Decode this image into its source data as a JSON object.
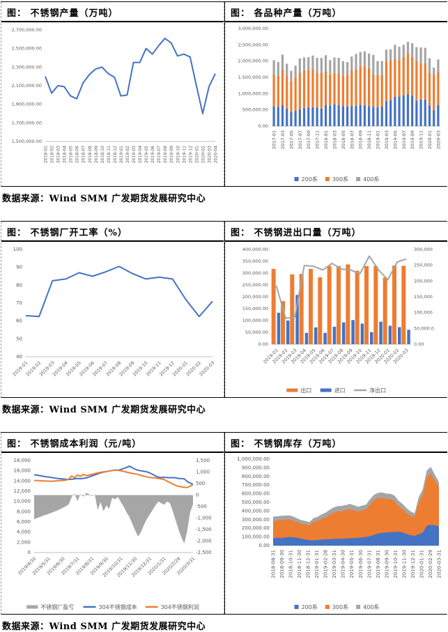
{
  "source_text": "数据来源：Wind SMM  广发期货发展研究中心",
  "colors": {
    "blue": "#4472C4",
    "orange": "#ED7D31",
    "gray": "#A5A5A5"
  },
  "chart_data": [
    {
      "type": "line",
      "title": "图： 不锈钢产量（万吨）",
      "categories": [
        "2018-01",
        "2018-02",
        "2018-03",
        "2018-04",
        "2018-05",
        "2018-06",
        "2018-07",
        "2018-08",
        "2018-09",
        "2018-10",
        "2018-11",
        "2018-12",
        "2019-01",
        "2019-02",
        "2019-03",
        "2019-04",
        "2019-05",
        "2019-06",
        "2019-07",
        "2019-08",
        "2019-09",
        "2019-10",
        "2019-11",
        "2019-12",
        "2020-01",
        "2020-02",
        "2020-03",
        "2020-04"
      ],
      "values": [
        2200000,
        2020000,
        2100000,
        2090000,
        1990000,
        1960000,
        2130000,
        2220000,
        2280000,
        2300000,
        2230000,
        2190000,
        1990000,
        2000000,
        2350000,
        2350000,
        2500000,
        2440000,
        2530000,
        2610000,
        2560000,
        2420000,
        2440000,
        2410000,
        2100000,
        1800000,
        2090000,
        2230000
      ],
      "ylim": [
        1500000,
        2700000
      ],
      "ystep": 200000,
      "ydec": 2,
      "xrot": 90,
      "color": "#4472C4"
    },
    {
      "type": "stacked_bar",
      "title": "图： 各品种产量（万吨）",
      "categories": [
        "2017-01",
        "2017-02",
        "2017-03",
        "2017-04",
        "2017-05",
        "2017-06",
        "2017-07",
        "2017-08",
        "2017-09",
        "2017-10",
        "2017-11",
        "2017-12",
        "2018-01",
        "2018-02",
        "2018-03",
        "2018-04",
        "2018-05",
        "2018-06",
        "2018-07",
        "2018-08",
        "2018-09",
        "2018-10",
        "2018-11",
        "2018-12",
        "2019-01",
        "2019-02",
        "2019-03",
        "2019-04",
        "2019-05",
        "2019-06",
        "2019-07",
        "2019-08",
        "2019-09",
        "2019-10",
        "2019-11",
        "2019-12",
        "2020-01",
        "2020-02",
        "2020-03"
      ],
      "label_every": 2,
      "xrot": 90,
      "series": [
        {
          "name": "200系",
          "color": "#4472C4",
          "values": [
            600000,
            590000,
            640000,
            540000,
            430000,
            470000,
            520000,
            560000,
            580000,
            580000,
            570000,
            540000,
            650000,
            630000,
            680000,
            650000,
            610000,
            600000,
            620000,
            620000,
            660000,
            640000,
            610000,
            590000,
            580000,
            600000,
            760000,
            800000,
            900000,
            910000,
            950000,
            980000,
            930000,
            780000,
            820000,
            820000,
            640000,
            500000,
            660000
          ]
        },
        {
          "name": "300系",
          "color": "#ED7D31",
          "values": [
            985000,
            960000,
            1100000,
            1010000,
            950000,
            1030000,
            1120000,
            1160000,
            1140000,
            1180000,
            1070000,
            1100000,
            1040000,
            960000,
            950000,
            970000,
            950000,
            980000,
            1090000,
            1130000,
            1180000,
            1210000,
            1170000,
            1000000,
            1000000,
            980000,
            1250000,
            1220000,
            1170000,
            1130000,
            1170000,
            1240000,
            1200000,
            1220000,
            1110000,
            1110000,
            1000000,
            1100000,
            1000000
          ]
        },
        {
          "name": "400系",
          "color": "#A5A5A5",
          "values": [
            440000,
            420000,
            460000,
            370000,
            320000,
            360000,
            440000,
            390000,
            400000,
            410000,
            460000,
            460000,
            490000,
            440000,
            480000,
            480000,
            440000,
            390000,
            430000,
            470000,
            440000,
            450000,
            450000,
            600000,
            420000,
            420000,
            340000,
            340000,
            430000,
            400000,
            380000,
            370000,
            420000,
            430000,
            490000,
            480000,
            450000,
            200000,
            390000
          ]
        }
      ],
      "ylim": [
        0,
        3000000
      ],
      "ystep": 500000,
      "ydec": 2,
      "legend": [
        {
          "kind": "rect",
          "color": "#4472C4",
          "label": "200系"
        },
        {
          "kind": "rect",
          "color": "#ED7D31",
          "label": "300系"
        },
        {
          "kind": "rect",
          "color": "#A5A5A5",
          "label": "400系"
        }
      ]
    },
    {
      "type": "line",
      "title": "图： 不锈钢厂开工率（%）",
      "categories": [
        "2019-01",
        "2019-02",
        "2019-03",
        "2019-04",
        "2019-05",
        "2019-06",
        "2019-07",
        "2019-08",
        "2019-09",
        "2019-10",
        "2019-11",
        "2019-12",
        "2020-01",
        "2020-02",
        "2020-03"
      ],
      "values": [
        63,
        62.5,
        82.5,
        83.5,
        87,
        85,
        87.5,
        90.5,
        86.5,
        83.5,
        84.5,
        83.5,
        72,
        62.5,
        71
      ],
      "ylim": [
        40,
        100
      ],
      "ystep": 10,
      "ydec": 0,
      "xrot": 45,
      "color": "#4472C4"
    },
    {
      "type": "bar_line",
      "title": "图： 不锈钢进出口量（万吨）",
      "categories": [
        "2019-01",
        "2019-02",
        "2019-03",
        "2019-04",
        "2019-05",
        "2019-06",
        "2019-07",
        "2019-08",
        "2019-09",
        "2019-10",
        "2019-11",
        "2019-12",
        "2020-01",
        "2020-02",
        "2020-03"
      ],
      "bars": [
        {
          "name": "出口",
          "color": "#ED7D31",
          "values": [
            318000,
            182000,
            295000,
            297000,
            318000,
            283000,
            330000,
            330000,
            337000,
            310000,
            330000,
            330000,
            282000,
            332000,
            331000
          ]
        },
        {
          "name": "进口",
          "color": "#4472C4",
          "values": [
            133000,
            100000,
            208000,
            48000,
            71000,
            48000,
            74000,
            92000,
            102000,
            87000,
            51000,
            95000,
            78000,
            72000,
            61000
          ]
        }
      ],
      "line": {
        "name": "净出口",
        "color": "#A5A5A5",
        "axis": "y2",
        "values": [
          185000,
          82000,
          87000,
          249000,
          247000,
          235000,
          256000,
          238000,
          235000,
          223000,
          279000,
          235000,
          204000,
          260000,
          270000
        ]
      },
      "ylim": [
        0,
        400000
      ],
      "ystep": 50000,
      "ydec": 2,
      "y2lim": [
        0,
        300000
      ],
      "y2step": 50000,
      "y2tick_labels": [
        "0.00",
        "50,000.0",
        "100,000",
        "150,000",
        "200,000",
        "250,000",
        "300,000"
      ],
      "xrot": 45,
      "legend": [
        {
          "kind": "bar",
          "color": "#ED7D31",
          "label": "出口"
        },
        {
          "kind": "bar",
          "color": "#4472C4",
          "label": "进口"
        },
        {
          "kind": "line",
          "color": "#A5A5A5",
          "label": "净出口"
        }
      ]
    },
    {
      "type": "area_lines",
      "title": "图： 不锈钢成本利润（元/吨）",
      "categories": [
        "2019/4/30",
        "2019/5/31",
        "2019/6/30",
        "2019/7/31",
        "2019/8/31",
        "2019/9/30",
        "2019/10/31",
        "2019/11/30",
        "2019/12/31",
        "2020/1/31",
        "2020/2/29",
        "2020/3/31"
      ],
      "area": {
        "name": "不锈钢厂盈亏",
        "color": "#A6A6A6",
        "axis": "y2",
        "values": [
          -1050,
          -1000,
          -950,
          -900,
          -860,
          -820,
          -770,
          -720,
          -670,
          -610,
          -550,
          -480,
          -400,
          -80,
          60,
          -260,
          40,
          -70,
          90,
          40,
          -40,
          30,
          -650,
          -300,
          -700,
          -450,
          -600,
          -120,
          -180,
          -80,
          -300,
          -500,
          -750,
          -950,
          -1250,
          -1550,
          -1800,
          -1600,
          -1300,
          -1050,
          -850,
          -650,
          -450,
          -280,
          -350,
          -420,
          -280,
          -350,
          -700,
          -1100,
          -1500,
          -1850,
          -2100,
          -1550,
          -750,
          -400
        ]
      },
      "lines": [
        {
          "name": "304不锈钢成本",
          "color": "#4472C4",
          "values": [
            15200,
            15150,
            15050,
            14950,
            14850,
            14780,
            14700,
            14600,
            14500,
            14450,
            14400,
            14350,
            14300,
            14350,
            14420,
            14500,
            14450,
            14520,
            14600,
            14800,
            15000,
            15200,
            15400,
            15600,
            15750,
            15850,
            15950,
            16050,
            16150,
            16100,
            16250,
            16450,
            16650,
            16900,
            16600,
            16300,
            16100,
            16000,
            15900,
            15800,
            15600,
            15300,
            15000,
            14750,
            14700,
            14720,
            14680,
            14650,
            14680,
            14620,
            14500,
            14480,
            14420,
            13900,
            13600,
            13350
          ]
        },
        {
          "name": "304不锈钢利润",
          "color": "#ED7D31",
          "values": [
            14100,
            14090,
            14060,
            14020,
            14000,
            13980,
            13960,
            14000,
            14040,
            14080,
            14120,
            14180,
            14400,
            15000,
            14650,
            15200,
            14900,
            15300,
            15050,
            15200,
            15300,
            15450,
            15600,
            15700,
            15800,
            15850,
            15950,
            16050,
            16150,
            16100,
            16000,
            15900,
            15750,
            15600,
            15500,
            15400,
            15300,
            15100,
            14950,
            14820,
            14700,
            14650,
            14600,
            14500,
            14420,
            14300,
            14000,
            13700,
            13400,
            13150,
            12950,
            12850,
            12780,
            12720,
            13000,
            13300
          ]
        }
      ],
      "ylim": [
        0,
        18000
      ],
      "ystep": 2000,
      "ydec": 0,
      "y2lim": [
        -2500,
        1500
      ],
      "y2step": 500,
      "xrot": 45,
      "legend": [
        {
          "kind": "bar",
          "color": "#A6A6A6",
          "label": "不锈钢厂盈亏"
        },
        {
          "kind": "line",
          "color": "#4472C4",
          "label": "304不锈钢成本"
        },
        {
          "kind": "line",
          "color": "#ED7D31",
          "label": "304不锈钢利润"
        }
      ]
    },
    {
      "type": "stacked_area",
      "title": "图： 不锈钢库存（万吨）",
      "categories": [
        "2018-08-31",
        "2018-09-30",
        "2018-10-31",
        "2018-11-30",
        "2018-12-31",
        "2019-01-31",
        "2019-02-28",
        "2019-03-31",
        "2019-04-30",
        "2019-05-31",
        "2019-06-30",
        "2019-07-31",
        "2019-08-31",
        "2019-09-30",
        "2019-10-31",
        "2019-11-30",
        "2019-12-31",
        "2020-01-31",
        "2020-02-29",
        "2020-03-31"
      ],
      "series": [
        {
          "name": "200系",
          "color": "#4472C4",
          "values": [
            85000,
            92000,
            88000,
            95000,
            100000,
            96000,
            90000,
            80000,
            70000,
            62000,
            60000,
            66000,
            70000,
            73000,
            76000,
            78000,
            80000,
            79000,
            82000,
            85000,
            88000,
            90000,
            95000,
            100000,
            110000,
            125000,
            140000,
            148000,
            152000,
            155000,
            158000,
            160000,
            150000,
            135000,
            120000,
            112000,
            130000,
            150000,
            230000,
            240000,
            235000,
            225000
          ]
        },
        {
          "name": "300系",
          "color": "#ED7D31",
          "values": [
            195000,
            198000,
            205000,
            205000,
            200000,
            192000,
            180000,
            172000,
            175000,
            172000,
            215000,
            219000,
            240000,
            254000,
            280000,
            305000,
            315000,
            321000,
            330000,
            337000,
            320000,
            305000,
            310000,
            320000,
            370000,
            405000,
            410000,
            405000,
            390000,
            385000,
            357000,
            300000,
            275000,
            240000,
            225000,
            218000,
            370000,
            430000,
            560000,
            590000,
            515000,
            455000
          ]
        },
        {
          "name": "400系",
          "color": "#A5A5A5",
          "values": [
            55000,
            50000,
            52000,
            48000,
            50000,
            48000,
            45000,
            42000,
            40000,
            38000,
            45000,
            48000,
            52000,
            55000,
            58000,
            60000,
            62000,
            60000,
            58000,
            60000,
            60000,
            55000,
            58000,
            55000,
            60000,
            60000,
            62000,
            62000,
            60000,
            60000,
            65000,
            60000,
            58000,
            58000,
            50000,
            45000,
            60000,
            70000,
            80000,
            80000,
            70000,
            55000
          ]
        }
      ],
      "ylim": [
        0,
        1000000
      ],
      "ystep": 100000,
      "ydec": 2,
      "xrot": 90,
      "legend": [
        {
          "kind": "rect",
          "color": "#4472C4",
          "label": "200系"
        },
        {
          "kind": "rect",
          "color": "#ED7D31",
          "label": "300系"
        },
        {
          "kind": "rect",
          "color": "#A5A5A5",
          "label": "400系"
        }
      ]
    }
  ]
}
